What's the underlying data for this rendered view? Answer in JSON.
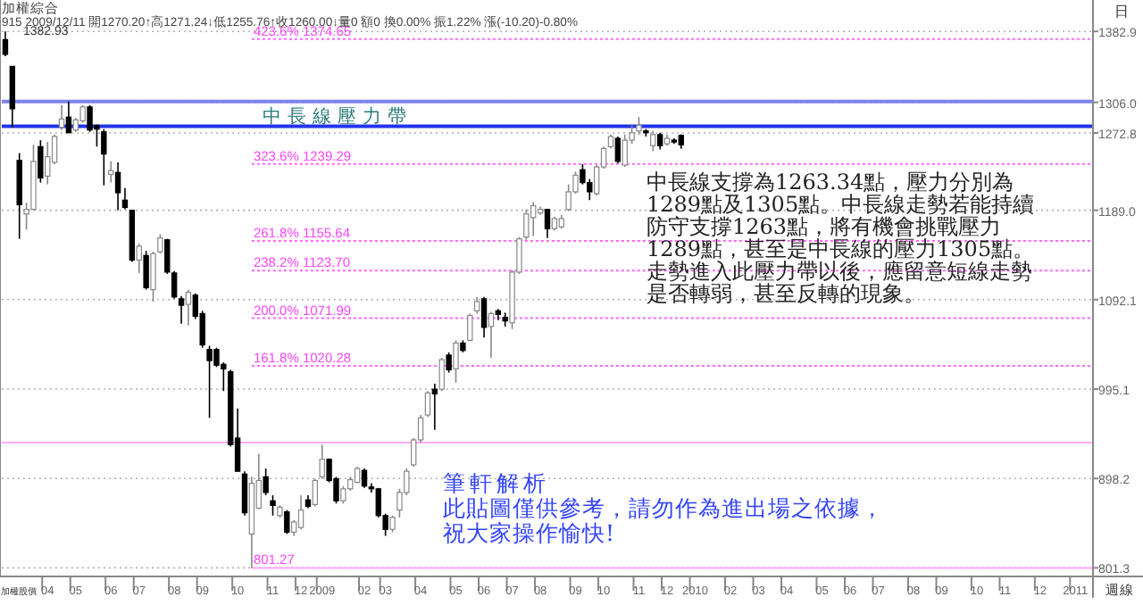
{
  "chart_data": {
    "type": "candlestick",
    "title": "加權綜合",
    "subtitle": "915 2009/12/11 開1270.20↑高1271.24↓低1255.76↑收1260.00↓量0 額0 換0.00% 振1.22% 漲(-10.20)-0.80%",
    "categories": [
      null,
      null,
      null,
      null,
      null,
      null,
      "04",
      null,
      null,
      null,
      "05",
      null,
      null,
      null,
      null,
      "06",
      null,
      null,
      null,
      "07",
      null,
      null,
      null,
      null,
      "08",
      null,
      null,
      null,
      "09",
      null,
      null,
      null,
      null,
      "10",
      null,
      null,
      null,
      null,
      "11",
      null,
      null,
      null,
      "12",
      null,
      null,
      "2009",
      null,
      null,
      null,
      null,
      null,
      "02",
      null,
      null,
      "03",
      null,
      null,
      null,
      null,
      "04",
      null,
      null,
      null,
      null,
      "05",
      null,
      null,
      null,
      "06",
      null,
      null,
      null,
      "07",
      null,
      null,
      null,
      "08",
      null,
      null,
      null,
      null,
      "09",
      null,
      null,
      null,
      "10",
      null,
      null,
      null,
      null,
      "11",
      null,
      null,
      null,
      "12",
      null,
      null,
      null,
      "2010",
      null,
      null,
      null,
      null,
      "02",
      null,
      null,
      null,
      "03",
      null,
      null,
      null,
      "04",
      null,
      null,
      null,
      null,
      "05",
      null,
      null,
      null,
      "06",
      null,
      null,
      null,
      "07",
      null,
      null,
      null,
      null,
      "08",
      null,
      null,
      null,
      "09",
      null,
      null,
      null,
      null,
      "10",
      null,
      null,
      null,
      "11",
      null,
      null,
      null,
      null,
      "12",
      null,
      null,
      null,
      null,
      "2011",
      null,
      null
    ],
    "ohlc": [
      [
        1374,
        1382.93,
        1356,
        1358
      ],
      [
        1345,
        1345,
        1279,
        1299
      ],
      [
        1243,
        1251,
        1158,
        1195
      ],
      [
        1185,
        1197,
        1168,
        1190
      ],
      [
        1190,
        1260,
        1189,
        1242
      ],
      [
        1258,
        1265,
        1219,
        1224
      ],
      [
        1226,
        1263,
        1217,
        1247
      ],
      [
        1241,
        1271,
        1239,
        1269
      ],
      [
        1279,
        1303,
        1276,
        1288
      ],
      [
        1290,
        1307,
        1273,
        1273
      ],
      [
        1276,
        1289,
        1274,
        1287
      ],
      [
        1286,
        1303,
        1284,
        1301
      ],
      [
        1301,
        1303,
        1274,
        1276
      ],
      [
        1281,
        1282,
        1258,
        1277
      ],
      [
        1274,
        1277,
        1216,
        1250
      ],
      [
        1228,
        1242,
        1219,
        1232
      ],
      [
        1230,
        1241,
        1189,
        1208
      ],
      [
        1200,
        1213,
        1190,
        1192
      ],
      [
        1189,
        1189,
        1133,
        1135
      ],
      [
        1135,
        1153,
        1121,
        1150
      ],
      [
        1140,
        1145,
        1103,
        1105
      ],
      [
        1103,
        1144,
        1090,
        1142
      ],
      [
        1144,
        1163,
        1142,
        1159
      ],
      [
        1157,
        1158,
        1120,
        1122
      ],
      [
        1121,
        1123,
        1093,
        1095
      ],
      [
        1093,
        1096,
        1066,
        1086
      ],
      [
        1087,
        1103,
        1064,
        1100
      ],
      [
        1097,
        1099,
        1071,
        1074
      ],
      [
        1077,
        1080,
        1040,
        1043
      ],
      [
        1038,
        1042,
        964,
        1026
      ],
      [
        1038,
        1040,
        1019,
        1021
      ],
      [
        1022,
        1024,
        993,
        1017
      ],
      [
        1014,
        1016,
        933,
        935
      ],
      [
        942,
        974,
        906,
        906
      ],
      [
        903,
        906,
        858,
        861
      ],
      [
        838,
        900,
        801.27,
        893
      ],
      [
        866,
        925,
        865,
        896
      ],
      [
        900,
        909,
        880,
        883
      ],
      [
        874,
        880,
        858,
        869
      ],
      [
        858,
        869,
        856,
        867
      ],
      [
        862,
        864,
        838,
        840
      ],
      [
        840,
        853,
        836,
        851
      ],
      [
        845,
        880,
        843,
        864
      ],
      [
        875,
        880,
        866,
        868
      ],
      [
        870,
        898,
        868,
        896
      ],
      [
        900,
        935,
        898,
        919
      ],
      [
        919,
        920,
        894,
        896
      ],
      [
        898,
        900,
        871,
        874
      ],
      [
        874,
        890,
        871,
        887
      ],
      [
        887,
        900,
        885,
        897
      ],
      [
        894,
        911,
        893,
        909
      ],
      [
        907,
        909,
        888,
        890
      ],
      [
        889,
        893,
        883,
        887
      ],
      [
        887,
        888,
        856,
        858
      ],
      [
        858,
        860,
        836,
        843
      ],
      [
        843,
        858,
        840,
        856
      ],
      [
        864,
        887,
        856,
        883
      ],
      [
        883,
        909,
        880,
        906
      ],
      [
        913,
        942,
        911,
        940
      ],
      [
        940,
        967,
        937,
        964
      ],
      [
        967,
        993,
        965,
        991
      ],
      [
        995,
        1001,
        951,
        990
      ],
      [
        995,
        1029,
        993,
        1027
      ],
      [
        1032,
        1035,
        1013,
        1016
      ],
      [
        1017,
        1048,
        1002,
        1045
      ],
      [
        1045,
        1048,
        1035,
        1037
      ],
      [
        1048,
        1077,
        1047,
        1075
      ],
      [
        1080,
        1095,
        1077,
        1090
      ],
      [
        1093,
        1095,
        1051,
        1062
      ],
      [
        1063,
        1079,
        1029,
        1077
      ],
      [
        1080,
        1082,
        1070,
        1076
      ],
      [
        1073,
        1078,
        1063,
        1069
      ],
      [
        1067,
        1124,
        1060,
        1122
      ],
      [
        1122,
        1160,
        1120,
        1158
      ],
      [
        1160,
        1190,
        1157,
        1185
      ],
      [
        1181,
        1198,
        1161,
        1194
      ],
      [
        1186,
        1193,
        1184,
        1190
      ],
      [
        1190,
        1190,
        1159,
        1169
      ],
      [
        1169,
        1182,
        1167,
        1180
      ],
      [
        1171,
        1184,
        1169,
        1180
      ],
      [
        1190,
        1217,
        1188,
        1209
      ],
      [
        1209,
        1231,
        1207,
        1227
      ],
      [
        1233,
        1239,
        1217,
        1219
      ],
      [
        1219,
        1223,
        1200,
        1209
      ],
      [
        1207,
        1238,
        1205,
        1236
      ],
      [
        1236,
        1258,
        1234,
        1256
      ],
      [
        1258,
        1271,
        1256,
        1269
      ],
      [
        1267,
        1269,
        1240,
        1242
      ],
      [
        1238,
        1271,
        1236,
        1265
      ],
      [
        1265,
        1281,
        1261,
        1273
      ],
      [
        1275,
        1290,
        1271,
        1281
      ],
      [
        1275,
        1277,
        1269,
        1273
      ],
      [
        1259,
        1275,
        1253,
        1271
      ],
      [
        1271,
        1273,
        1255,
        1259
      ],
      [
        1261,
        1271,
        1259,
        1267
      ],
      [
        1265,
        1267,
        1261,
        1263
      ],
      [
        1270.2,
        1271.24,
        1255.76,
        1260.0
      ],
      null,
      null,
      null,
      null,
      null,
      null,
      null,
      null,
      null,
      null,
      null,
      null,
      null,
      null,
      null,
      null,
      null,
      null,
      null,
      null,
      null,
      null,
      null,
      null,
      null,
      null,
      null,
      null,
      null,
      null,
      null,
      null,
      null,
      null,
      null,
      null,
      null,
      null,
      null,
      null,
      null,
      null,
      null,
      null,
      null,
      null,
      null,
      null,
      null,
      null,
      null,
      null,
      null,
      null,
      null,
      null,
      null,
      null
    ],
    "ylim": [
      792,
      1386
    ],
    "yticks": [
      801.3,
      898.2,
      995.1,
      1092.1,
      {
        "value": 1189,
        "label": "1189.0"
      },
      1272.8,
      {
        "value": 1306,
        "label": "1306.0"
      },
      1382.9
    ],
    "grid": "y",
    "ref_lines": [
      {
        "axis": "y",
        "value": 1307,
        "color": "#7b83f0",
        "line_style": "solid"
      },
      {
        "axis": "y",
        "value": 1280,
        "color": "#2233ee",
        "line_style": "solid"
      },
      {
        "axis": "y",
        "value": 1374.65,
        "label": "423.6% 1374.65",
        "color": "#ff66ff",
        "line_style": "dotted"
      },
      {
        "axis": "y",
        "value": 1239.29,
        "label": "323.6% 1239.29",
        "color": "#ff66ff",
        "line_style": "dotted"
      },
      {
        "axis": "y",
        "value": 1155.64,
        "label": "261.8% 1155.64",
        "color": "#ff66ff",
        "line_style": "dotted"
      },
      {
        "axis": "y",
        "value": 1123.7,
        "label": "238.2% 1123.70",
        "color": "#ff66ff",
        "line_style": "dotted"
      },
      {
        "axis": "y",
        "value": 1071.99,
        "label": "200.0% 1071.99",
        "color": "#ff66ff",
        "line_style": "dotted"
      },
      {
        "axis": "y",
        "value": 1020.28,
        "label": "161.8% 1020.28",
        "color": "#ff66ff",
        "line_style": "dotted"
      },
      {
        "axis": "y",
        "value": 937,
        "color": "#ffaaff",
        "line_style": "solid"
      },
      {
        "axis": "y",
        "value": 801.27,
        "label": "801.27",
        "color": "#ffaaff",
        "line_style": "solid"
      }
    ],
    "annotations": [
      "中長線壓力帶",
      "中長線支撐為1263.34點，壓力分別為",
      "1289點及1305點。中長線走勢若能持續",
      "防守支撐1263點，將有機會挑戰壓力",
      "1289點，甚至是中長線的壓力1305點。",
      "走勢進入此壓力帶以後，應留意短線走勢",
      "是否轉弱，甚至反轉的現象。",
      "筆軒解析",
      "此貼圖僅供參考，請勿作為進出場之依據，",
      "祝大家操作愉快!",
      "加權股價",
      "週線",
      "日",
      "1382.93"
    ]
  }
}
